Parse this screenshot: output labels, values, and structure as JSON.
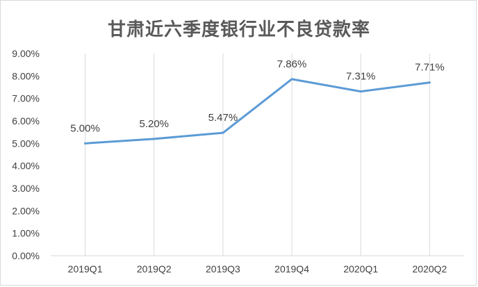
{
  "chart_data": {
    "type": "line",
    "title": "甘肃近六季度银行业不良贷款率",
    "categories": [
      "2019Q1",
      "2019Q2",
      "2019Q3",
      "2019Q4",
      "2020Q1",
      "2020Q2"
    ],
    "values": [
      5.0,
      5.2,
      5.47,
      7.86,
      7.31,
      7.71
    ],
    "data_labels": [
      "5.00%",
      "5.20%",
      "5.47%",
      "7.86%",
      "7.31%",
      "7.71%"
    ],
    "y_ticks": [
      "0.00%",
      "1.00%",
      "2.00%",
      "3.00%",
      "4.00%",
      "5.00%",
      "6.00%",
      "7.00%",
      "8.00%",
      "9.00%"
    ],
    "ylim": [
      0,
      9
    ],
    "xlabel": "",
    "ylabel": "",
    "grid": "vertical",
    "legend": "none",
    "line_color": "#5b9bd5",
    "grid_color": "#d9d9d9"
  }
}
